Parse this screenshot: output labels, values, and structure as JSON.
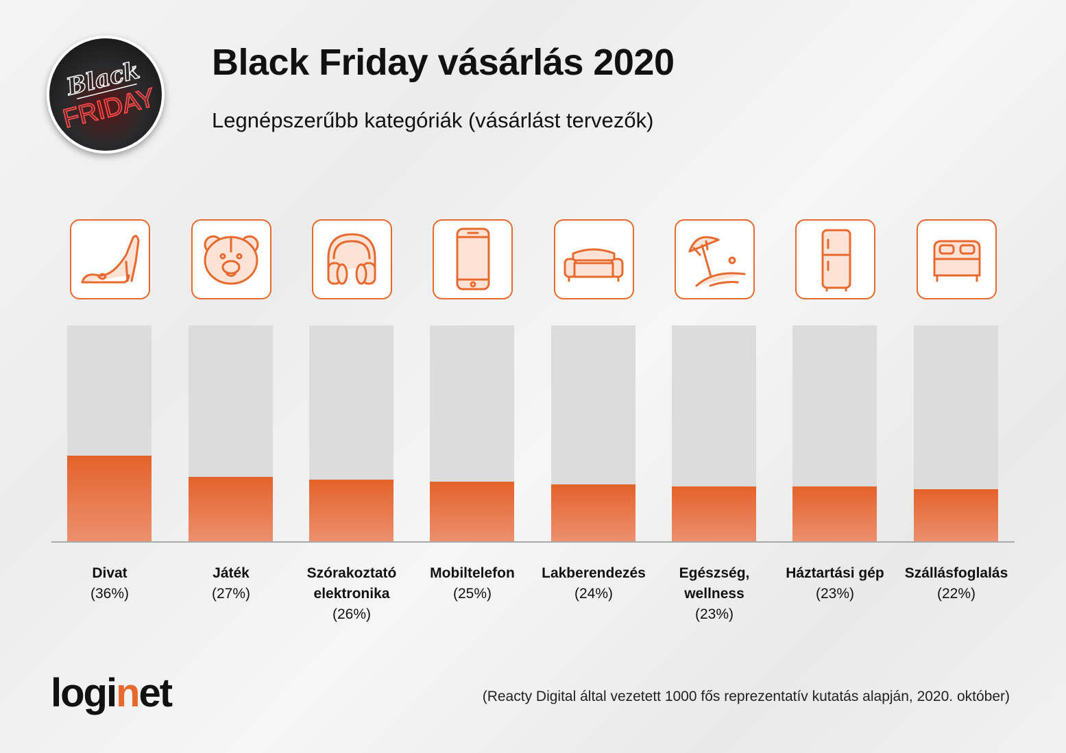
{
  "header": {
    "title": "Black Friday vásárlás 2020",
    "subtitle": "Legnépszerűbb kategóriák (vásárlást tervezők)",
    "badge_text": "Black FRIDAY"
  },
  "chart_data": {
    "type": "bar",
    "title": "Black Friday vásárlás 2020",
    "subtitle": "Legnépszerűbb kategóriák (vásárlást tervezők)",
    "categories": [
      {
        "name": [
          "Divat"
        ],
        "pct": "(36%)",
        "icon": "shoe-icon"
      },
      {
        "name": [
          "Játék"
        ],
        "pct": "(27%)",
        "icon": "teddy-bear-icon"
      },
      {
        "name": [
          "Szórakoztató",
          "elektronika"
        ],
        "pct": "(26%)",
        "icon": "headphones-icon"
      },
      {
        "name": [
          "Mobiltelefon"
        ],
        "pct": "(25%)",
        "icon": "smartphone-icon"
      },
      {
        "name": [
          "Lakberendezés"
        ],
        "pct": "(24%)",
        "icon": "sofa-icon"
      },
      {
        "name": [
          "Egészség,",
          "wellness"
        ],
        "pct": "(23%)",
        "icon": "beach-umbrella-icon"
      },
      {
        "name": [
          "Háztartási gép"
        ],
        "pct": "(23%)",
        "icon": "fridge-icon"
      },
      {
        "name": [
          "Szállásfoglalás"
        ],
        "pct": "(22%)",
        "icon": "bed-icon"
      }
    ],
    "values": [
      36,
      27,
      26,
      25,
      24,
      23,
      23,
      22
    ],
    "ylim": [
      0,
      90
    ],
    "xlabel": "",
    "ylabel": "",
    "colors": {
      "bar": "#e4622a",
      "track": "#dcdcdc"
    }
  },
  "footer": {
    "logo": "loginet",
    "source": "(Reacty Digital által vezetett 1000 fős reprezentatív kutatás alapján, 2020. október)"
  }
}
